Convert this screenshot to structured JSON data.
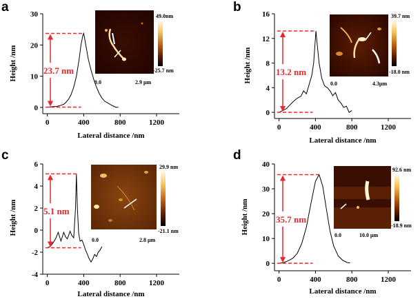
{
  "colors": {
    "annotation": "#e8262b",
    "line": "#000000",
    "afm_dark": "#2a0700",
    "afm_light": "#ffe9a6"
  },
  "chart_data": [
    {
      "type": "line",
      "panel": "a",
      "xlabel": "Lateral distance /nm",
      "ylabel": "Height /nm",
      "xlim": [
        -50,
        1450
      ],
      "ylim": [
        -2,
        30
      ],
      "xticks": [
        0,
        400,
        800,
        1200
      ],
      "yticks": [
        0,
        10,
        20,
        30
      ],
      "x": [
        20,
        60,
        100,
        140,
        180,
        200,
        230,
        260,
        290,
        320,
        350,
        370,
        390,
        400,
        420,
        450,
        480,
        510,
        540,
        570,
        600,
        630,
        660,
        700,
        740,
        760,
        780
      ],
      "y": [
        0.1,
        0.3,
        0.3,
        0.6,
        1.0,
        1.5,
        2.5,
        4.0,
        6.5,
        10.0,
        15.5,
        20.0,
        23.0,
        23.7,
        20.5,
        15.5,
        12.0,
        9.0,
        6.5,
        4.5,
        3.0,
        2.0,
        1.5,
        0.8,
        0.2,
        0.0,
        0.1
      ],
      "annotation": "23.7 nm",
      "inset": {
        "cbar_max": "49.0nm",
        "cbar_min": "-25.7 nm",
        "x_start": "0.0",
        "x_end": "2.9 μm"
      }
    },
    {
      "type": "line",
      "panel": "b",
      "xlabel": "Lateral distance /nm",
      "ylabel": "Height /nm",
      "xlim": [
        -50,
        1450
      ],
      "ylim": [
        -1,
        16
      ],
      "xticks": [
        0,
        400,
        800,
        1200
      ],
      "yticks": [
        0,
        4,
        8,
        12,
        16
      ],
      "x": [
        0,
        40,
        80,
        120,
        160,
        200,
        240,
        270,
        300,
        330,
        360,
        380,
        395,
        405,
        420,
        440,
        470,
        500,
        530,
        560,
        590,
        620,
        650,
        680,
        710,
        740,
        770,
        800
      ],
      "y": [
        0.0,
        0.3,
        0.6,
        1.2,
        1.8,
        2.3,
        2.6,
        3.5,
        3.0,
        4.5,
        6.0,
        8.0,
        11.0,
        13.2,
        11.0,
        8.0,
        5.5,
        4.3,
        4.0,
        3.5,
        2.7,
        3.2,
        2.0,
        1.5,
        0.8,
        1.0,
        0.0,
        0.3
      ],
      "annotation": "13.2 nm",
      "inset": {
        "cbar_max": "39.7 nm",
        "cbar_min": "-18.0 nm",
        "x_start": "0.0",
        "x_end": "4.3μm"
      }
    },
    {
      "type": "line",
      "panel": "c",
      "xlabel": "Lateral distance /nm",
      "ylabel": "Height /nm",
      "xlim": [
        -50,
        1450
      ],
      "ylim": [
        -4,
        6
      ],
      "xticks": [
        0,
        400,
        800,
        1200
      ],
      "yticks": [
        -4,
        -2,
        0,
        2,
        4,
        6
      ],
      "x": [
        0,
        30,
        60,
        90,
        120,
        150,
        180,
        200,
        220,
        250,
        270,
        290,
        310,
        320,
        330,
        345,
        360,
        380,
        400,
        420,
        440,
        460,
        480,
        500,
        520,
        540,
        560,
        580,
        600
      ],
      "y": [
        -1.6,
        -1.5,
        -1.2,
        -0.8,
        -0.2,
        -1.0,
        -0.2,
        -0.6,
        -0.8,
        -0.1,
        -0.5,
        -0.7,
        2.0,
        5.1,
        2.0,
        -0.3,
        -1.0,
        -0.9,
        -1.3,
        -1.8,
        -2.2,
        -2.6,
        -2.9,
        -2.6,
        -2.2,
        -2.4,
        -2.0,
        -1.8,
        -1.5
      ],
      "annotation": "5.1 nm",
      "inset": {
        "cbar_max": "29.9 nm",
        "cbar_min": "-21.1 nm",
        "x_start": "0.0",
        "x_end": "2.8 μm"
      }
    },
    {
      "type": "line",
      "panel": "d",
      "xlabel": "Lateral distance /nm",
      "ylabel": "Height /nm",
      "xlim": [
        -50,
        1450
      ],
      "ylim": [
        -3,
        40
      ],
      "xticks": [
        0,
        400,
        800,
        1200
      ],
      "yticks": [
        0,
        10,
        20,
        30,
        40
      ],
      "x": [
        0,
        50,
        100,
        150,
        200,
        250,
        300,
        350,
        400,
        440,
        480,
        520,
        560,
        600,
        650,
        700,
        750,
        780
      ],
      "y": [
        0.0,
        0.3,
        1.0,
        2.0,
        4.0,
        8.0,
        14.5,
        24.0,
        33.0,
        35.7,
        31.0,
        22.0,
        13.0,
        7.0,
        3.0,
        1.2,
        0.3,
        0.1
      ],
      "annotation": "35.7 nm",
      "inset": {
        "cbar_max": "92.6 nm",
        "cbar_min": "-18.9 nm",
        "x_start": "0.0",
        "x_end": "10.0 μm"
      }
    }
  ]
}
